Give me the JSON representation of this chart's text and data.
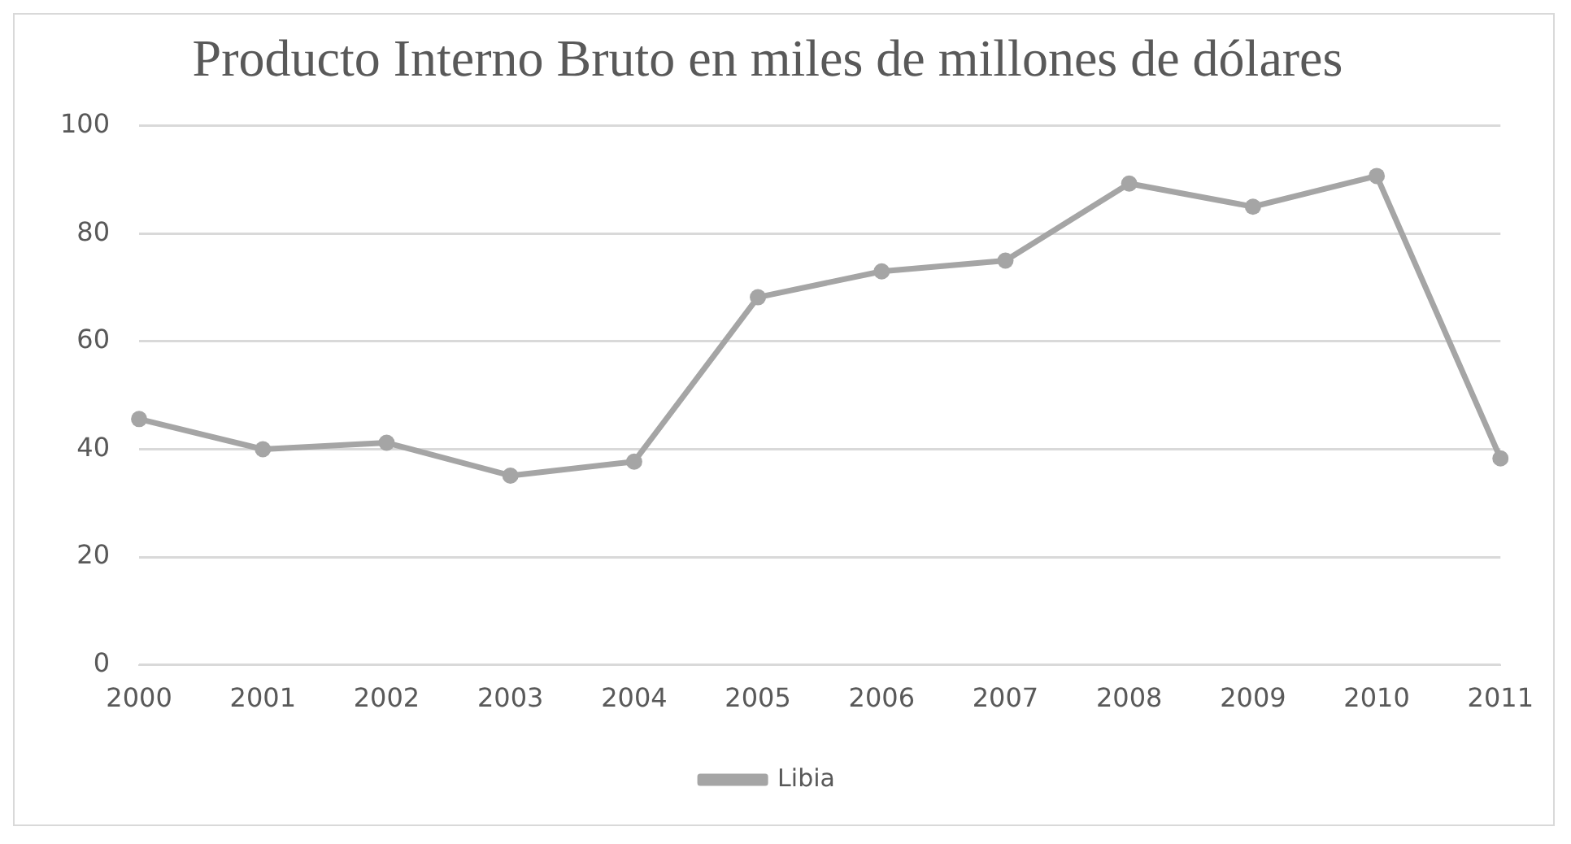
{
  "chart_data": {
    "type": "line",
    "title": "Producto Interno Bruto en miles de millones de dólares",
    "categories": [
      "2000",
      "2001",
      "2002",
      "2003",
      "2004",
      "2005",
      "2006",
      "2007",
      "2008",
      "2009",
      "2010",
      "2011"
    ],
    "series": [
      {
        "name": "Libia",
        "color": "#a5a5a5",
        "values": [
          45.6,
          40,
          41.2,
          35.1,
          37.7,
          68.2,
          73,
          75,
          89.3,
          85,
          90.7,
          38.3
        ]
      }
    ],
    "ylim": [
      0,
      100
    ],
    "yticks": [
      0,
      20,
      40,
      60,
      80,
      100
    ],
    "grid": "y",
    "legend": "bottom",
    "marker": "circle",
    "line_style": "solid"
  }
}
